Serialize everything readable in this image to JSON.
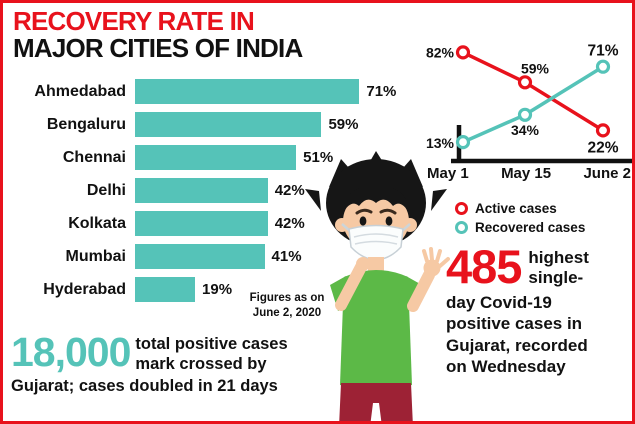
{
  "accent": {
    "red": "#e8121c",
    "teal": "#55c3b8",
    "green": "#5cb947",
    "dark": "#111111"
  },
  "title": {
    "line1": "RECOVERY RATE IN",
    "line2": "MAJOR CITIES OF INDIA"
  },
  "chart_data": [
    {
      "type": "bar",
      "title": "Recovery rate in major cities of India",
      "categories": [
        "Ahmedabad",
        "Bengaluru",
        "Chennai",
        "Delhi",
        "Kolkata",
        "Mumbai",
        "Hyderabad"
      ],
      "values": [
        71,
        59,
        51,
        42,
        42,
        41,
        19
      ],
      "unit": "%",
      "xlim": [
        0,
        100
      ],
      "note_line1": "Figures as on",
      "note_line2": "June 2, 2020"
    },
    {
      "type": "line",
      "x": [
        "May 1",
        "May 15",
        "June 2"
      ],
      "unit": "%",
      "ylim": [
        0,
        100
      ],
      "legend_position": "below",
      "series": [
        {
          "name": "Active cases",
          "color": "#e8121c",
          "values": [
            82,
            59,
            22
          ]
        },
        {
          "name": "Recovered cases",
          "color": "#55c3b8",
          "values": [
            13,
            34,
            71
          ]
        }
      ]
    }
  ],
  "stats": {
    "left": {
      "number": "18,000",
      "side": [
        "total positive cases",
        "mark crossed by"
      ],
      "line3": "Gujarat; cases doubled in 21 days"
    },
    "right": {
      "number": "485",
      "side": [
        "highest",
        "single-"
      ],
      "below": [
        "day Covid-19",
        "positive cases in",
        "Gujarat, recorded",
        "on Wednesday"
      ]
    }
  }
}
